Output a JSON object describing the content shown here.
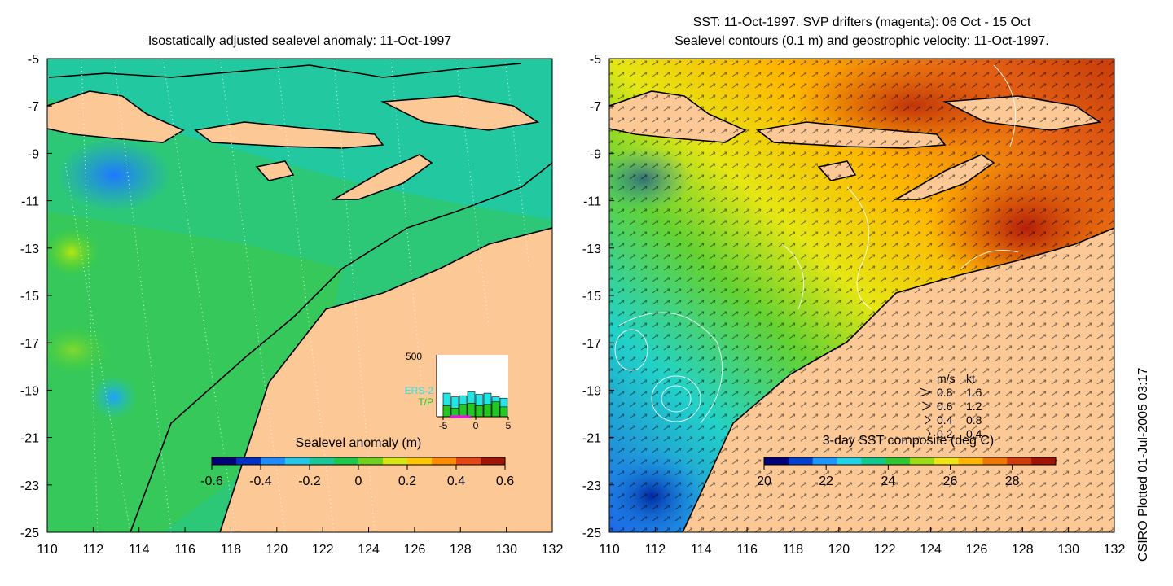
{
  "credit": "CSIRO Plotted 01-Jul-2005 03:17",
  "left_panel": {
    "title": "Isostatically adjusted sealevel anomaly: 11-Oct-1997",
    "x_ticks": [
      "110",
      "112",
      "114",
      "116",
      "118",
      "120",
      "122",
      "124",
      "126",
      "128",
      "130",
      "132"
    ],
    "y_ticks": [
      "-5",
      "-7",
      "-9",
      "-11",
      "-13",
      "-15",
      "-17",
      "-19",
      "-21",
      "-23",
      "-25"
    ],
    "colorbar": {
      "label": "Sealevel anomaly (m)",
      "ticks": [
        "-0.6",
        "-0.4",
        "-0.2",
        "0",
        "0.2",
        "0.4",
        "0.6"
      ],
      "colors": [
        "#00007a",
        "#0030c8",
        "#1e8cff",
        "#24c8e6",
        "#18c896",
        "#1ec84a",
        "#70d21e",
        "#d8e614",
        "#ffc800",
        "#ff8c00",
        "#e64614",
        "#a01400"
      ]
    },
    "inset": {
      "ymax_label": "500",
      "series_1": "ERS-2",
      "series_2": "T/P",
      "x_labels": [
        "-5",
        "0",
        "5"
      ],
      "colors": {
        "ers2": "#22e6e6",
        "tp": "#22c822",
        "marker": "#ff00ff"
      },
      "chart_data": {
        "type": "bar",
        "xlim": [
          -5,
          5
        ],
        "ylim": [
          0,
          500
        ],
        "series": [
          {
            "name": "ERS-2",
            "values": [
              190,
              160,
              170,
              200,
              180,
              190,
              160,
              150
            ]
          },
          {
            "name": "T/P",
            "values": [
              90,
              70,
              100,
              110,
              90,
              100,
              120,
              80
            ]
          }
        ]
      }
    }
  },
  "right_panel": {
    "title_line1": "SST: 11-Oct-1997. SVP drifters (magenta): 06 Oct - 15 Oct",
    "title_line2": "Sealevel contours (0.1 m) and geostrophic velocity: 11-Oct-1997.",
    "x_ticks": [
      "110",
      "112",
      "114",
      "116",
      "118",
      "120",
      "122",
      "124",
      "126",
      "128",
      "130",
      "132"
    ],
    "y_ticks": [
      "-5",
      "-7",
      "-9",
      "-11",
      "-13",
      "-15",
      "-17",
      "-19",
      "-21",
      "-23",
      "-25"
    ],
    "colorbar": {
      "label": "3-day SST composite (deg C)",
      "ticks": [
        "20",
        "22",
        "24",
        "26",
        "28"
      ],
      "colors": [
        "#00007a",
        "#0040d0",
        "#1e96ff",
        "#22d2e6",
        "#12c88c",
        "#30c830",
        "#a0dc14",
        "#f0e614",
        "#ffb400",
        "#f07800",
        "#d23c0a",
        "#a01400"
      ]
    },
    "velocity_key": {
      "header_ms": "m/s",
      "header_kt": "kt",
      "rows": [
        {
          "ms": "0.8",
          "kt": "1.6"
        },
        {
          "ms": "0.6",
          "kt": "1.2"
        },
        {
          "ms": "0.4",
          "kt": "0.8"
        },
        {
          "ms": "0.2",
          "kt": "0.4"
        }
      ]
    }
  },
  "colors": {
    "land": "#fcc896",
    "coast": "#000000",
    "contour": "#ffffff"
  }
}
